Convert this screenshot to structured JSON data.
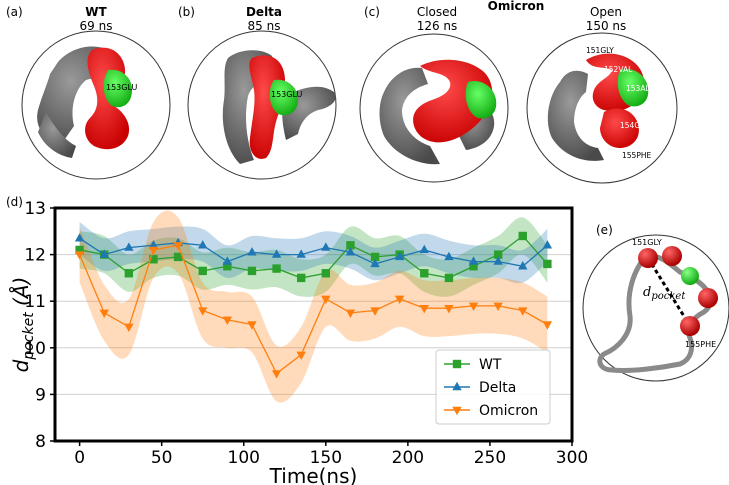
{
  "panels": {
    "a": {
      "letter": "(a)",
      "title": "WT",
      "subtitle": "69 ns",
      "residue": "153GLU"
    },
    "b": {
      "letter": "(b)",
      "title": "Delta",
      "subtitle": "85 ns",
      "residue": "153GLU"
    },
    "c": {
      "letter": "(c)",
      "title": "Omicron",
      "closed_label": "Closed",
      "closed_time": "126 ns",
      "open_label": "Open",
      "open_time": "150 ns",
      "residues": [
        "151GLY",
        "152VAL",
        "153ALA",
        "154GLY",
        "155PHE"
      ]
    },
    "d": {
      "letter": "(d)"
    },
    "e": {
      "letter": "(e)",
      "label_top": "151GLY",
      "label_bottom": "155PHE",
      "distance_label": "d_pocket"
    }
  },
  "colors": {
    "wt": "#2ca02c",
    "delta": "#1f77b4",
    "omicron": "#ff7f0e",
    "red_surface": "#ff0000",
    "green_surface": "#22dd22",
    "grey_surface": "#6b6b6b"
  },
  "chart_data": {
    "type": "line",
    "title": "",
    "xlabel": "Time(ns)",
    "ylabel": "d_pocket (Å)",
    "xlim": [
      -15,
      300
    ],
    "ylim": [
      8,
      13
    ],
    "xticks": [
      0,
      50,
      100,
      150,
      200,
      250,
      300
    ],
    "yticks": [
      8,
      9,
      10,
      11,
      12,
      13
    ],
    "grid": "horizontal",
    "legend": "lower-right",
    "x": [
      0,
      15,
      30,
      45,
      60,
      75,
      90,
      105,
      120,
      135,
      150,
      165,
      180,
      195,
      210,
      225,
      240,
      255,
      270,
      285
    ],
    "series": [
      {
        "name": "WT",
        "marker": "square",
        "color": "#2ca02c",
        "values": [
          12.1,
          12.0,
          11.6,
          11.9,
          11.95,
          11.65,
          11.75,
          11.65,
          11.7,
          11.5,
          11.6,
          12.2,
          11.95,
          12.0,
          11.6,
          11.5,
          11.75,
          12.0,
          12.4,
          11.8
        ],
        "band": 0.4
      },
      {
        "name": "Delta",
        "marker": "triangle-up",
        "color": "#1f77b4",
        "values": [
          12.35,
          12.0,
          12.15,
          12.2,
          12.25,
          12.2,
          11.85,
          12.05,
          12.0,
          12.0,
          12.15,
          12.05,
          11.8,
          11.95,
          12.1,
          11.95,
          11.85,
          11.85,
          11.75,
          12.2
        ],
        "band": 0.35
      },
      {
        "name": "Omicron",
        "marker": "triangle-down",
        "color": "#ff7f0e",
        "values": [
          12.0,
          10.75,
          10.45,
          12.1,
          12.2,
          10.8,
          10.6,
          10.5,
          9.45,
          9.85,
          11.05,
          10.75,
          10.8,
          11.05,
          10.85,
          10.85,
          10.9,
          10.9,
          10.8,
          10.5
        ],
        "band": 0.6
      }
    ]
  }
}
